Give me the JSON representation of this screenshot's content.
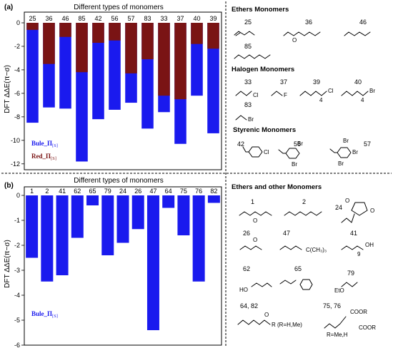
{
  "colors": {
    "blue": "#1a1aee",
    "red": "#7a1414"
  },
  "chart_data": [
    {
      "type": "bar",
      "panel_label": "(a)",
      "title": "Different types of monomers",
      "ylabel": "DFT ΔΔE(π−σ)",
      "ylim": [
        -12.5,
        0
      ],
      "yticks": [
        0,
        -2,
        -4,
        -6,
        -8,
        -10,
        -12
      ],
      "categories": [
        "25",
        "36",
        "46",
        "85",
        "42",
        "56",
        "57",
        "83",
        "33",
        "37",
        "40",
        "39"
      ],
      "series": [
        {
          "name": "Bule_Π",
          "name_sub": "[S]",
          "values": [
            -8.5,
            -7.2,
            -7.3,
            -11.8,
            -8.2,
            -7.4,
            -6.8,
            -9.0,
            -7.6,
            -10.3,
            -6.2,
            -9.4
          ]
        },
        {
          "name": "Red_Π",
          "name_sub": "[S]",
          "values": [
            -0.6,
            -3.5,
            -1.2,
            -4.2,
            -1.7,
            -1.5,
            -4.3,
            -3.1,
            -6.2,
            -6.5,
            -1.8,
            -2.2
          ]
        }
      ]
    },
    {
      "type": "bar",
      "panel_label": "(b)",
      "title": "Different types of monomers",
      "ylabel": "DFT ΔΔE(π−σ)",
      "ylim": [
        -6,
        0
      ],
      "yticks": [
        0,
        -1,
        -2,
        -3,
        -4,
        -5,
        -6
      ],
      "categories": [
        "1",
        "2",
        "41",
        "62",
        "65",
        "79",
        "24",
        "26",
        "47",
        "64",
        "75",
        "76",
        "82"
      ],
      "series": [
        {
          "name": "Bule_Π",
          "name_sub": "[S]",
          "values": [
            -2.5,
            -3.45,
            -3.2,
            -1.7,
            -0.4,
            -2.4,
            -1.9,
            -1.35,
            -5.4,
            -0.5,
            -1.6,
            -3.45,
            -0.3
          ]
        }
      ]
    }
  ],
  "monomers_a": {
    "ethers": {
      "title": "Ethers Monomers",
      "nums": [
        "25",
        "36",
        "46",
        "85"
      ]
    },
    "halogen": {
      "title": "Halogen Monomers",
      "nums": [
        "33",
        "37",
        "39",
        "40",
        "83"
      ],
      "atoms": {
        "cl1": "Cl",
        "f": "F",
        "cl2": "Cl",
        "br1": "Br",
        "br2": "Br"
      },
      "sub4a": "4",
      "sub4b": "4"
    },
    "styrenic": {
      "title": "Styrenic Monomers",
      "nums": [
        "42",
        "56",
        "57"
      ],
      "atoms": {
        "cl": "Cl",
        "br56a": "Br",
        "br56b": "Br",
        "br57a": "Br",
        "br57b": "Br",
        "br57c": "Br"
      }
    }
  },
  "monomers_b": {
    "title": "Ethers and other Monomers",
    "nums": {
      "n1": "1",
      "n2": "2",
      "n24": "24",
      "n26": "26",
      "n47": "47",
      "n41": "41",
      "n62": "62",
      "n65": "65",
      "n79": "79",
      "n6482": "64, 82",
      "n7576": "75, 76"
    },
    "labels": {
      "o": "O",
      "ho": "HO",
      "oh": "OH",
      "eto": "EtO",
      "tbu": "C(CH₃)₃",
      "sub9": "9",
      "r": "R (R=H,Me)",
      "cooR1": "COOR",
      "cooR2": "COOR",
      "rme": "R=Me,H"
    }
  }
}
